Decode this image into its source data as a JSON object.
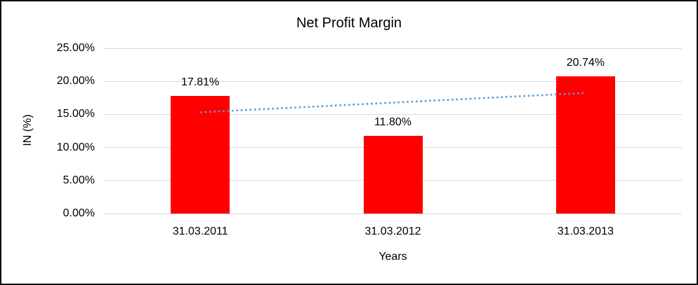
{
  "chart_data": {
    "type": "bar",
    "title": "Net Profit Margin",
    "xlabel": "Years",
    "ylabel": "IN (%)",
    "categories": [
      "31.03.2011",
      "31.03.2012",
      "31.03.2013"
    ],
    "values": [
      17.81,
      11.8,
      20.74
    ],
    "data_labels": [
      "17.81%",
      "11.80%",
      "20.74%"
    ],
    "ylim": [
      0,
      25
    ],
    "ytick_step": 5,
    "ytick_labels": [
      "0.00%",
      "5.00%",
      "10.00%",
      "15.00%",
      "20.00%",
      "25.00%"
    ],
    "grid": true,
    "legend": "none",
    "bar_color": "#FF0000",
    "gridline_color": "#D9D9D9",
    "text_color": "#000000",
    "trendline": {
      "type": "linear",
      "style": "dotted",
      "color": "#5B9BD5"
    }
  }
}
